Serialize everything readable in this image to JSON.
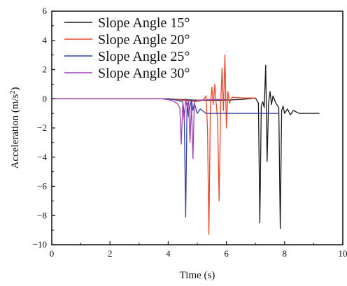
{
  "chart_data": {
    "type": "line",
    "xlabel": "Time (s)",
    "ylabel": "Acceleration (m/s²)",
    "ylabel_base": "Acceleration (m/s",
    "ylabel_sup": "2",
    "ylabel_close": ")",
    "xlim": [
      0,
      10
    ],
    "ylim": [
      -10,
      6
    ],
    "x_ticks": [
      0,
      2,
      4,
      6,
      8,
      10
    ],
    "y_ticks": [
      -10,
      -8,
      -6,
      -4,
      -2,
      0,
      2,
      4,
      6
    ],
    "grid": false,
    "legend_position": "top-center",
    "series": [
      {
        "name": "Slope Angle 15°",
        "color": "#1a1a1a",
        "points": [
          [
            0,
            0
          ],
          [
            1.5,
            0
          ],
          [
            3,
            0
          ],
          [
            4.0,
            0
          ],
          [
            4.4,
            -0.05
          ],
          [
            5.0,
            -0.1
          ],
          [
            5.8,
            -0.1
          ],
          [
            6.5,
            -0.05
          ],
          [
            7.0,
            0.05
          ],
          [
            7.1,
            -0.3
          ],
          [
            7.15,
            -8.5
          ],
          [
            7.2,
            -0.5
          ],
          [
            7.25,
            -0.2
          ],
          [
            7.3,
            -0.6
          ],
          [
            7.35,
            2.3
          ],
          [
            7.4,
            -4.3
          ],
          [
            7.45,
            -0.3
          ],
          [
            7.5,
            0.5
          ],
          [
            7.55,
            -0.4
          ],
          [
            7.6,
            0.2
          ],
          [
            7.7,
            -0.3
          ],
          [
            7.8,
            -0.6
          ],
          [
            7.85,
            -8.9
          ],
          [
            7.9,
            -0.8
          ],
          [
            7.95,
            -0.5
          ],
          [
            8.0,
            -1.0
          ],
          [
            8.1,
            -0.7
          ],
          [
            8.2,
            -1.1
          ],
          [
            8.3,
            -0.8
          ],
          [
            8.5,
            -1.0
          ],
          [
            8.8,
            -1.0
          ],
          [
            9.2,
            -1.0
          ]
        ]
      },
      {
        "name": "Slope Angle 20°",
        "color": "#e8472a",
        "points": [
          [
            0,
            0
          ],
          [
            1.5,
            0
          ],
          [
            3,
            0
          ],
          [
            4.0,
            0
          ],
          [
            4.5,
            -0.1
          ],
          [
            5.0,
            -0.2
          ],
          [
            5.2,
            -0.1
          ],
          [
            5.3,
            0.2
          ],
          [
            5.35,
            -2.0
          ],
          [
            5.4,
            -9.3
          ],
          [
            5.45,
            -0.5
          ],
          [
            5.5,
            0.8
          ],
          [
            5.55,
            -0.4
          ],
          [
            5.6,
            1.0
          ],
          [
            5.65,
            -0.3
          ],
          [
            5.7,
            -1.5
          ],
          [
            5.75,
            -7.0
          ],
          [
            5.8,
            -0.6
          ],
          [
            5.85,
            2.1
          ],
          [
            5.9,
            -0.8
          ],
          [
            5.95,
            3.0
          ],
          [
            6.0,
            -2.0
          ],
          [
            6.05,
            0.5
          ],
          [
            6.1,
            -0.3
          ],
          [
            6.2,
            0.1
          ],
          [
            6.6,
            0.05
          ],
          [
            7.0,
            0.05
          ]
        ]
      },
      {
        "name": "Slope Angle 25°",
        "color": "#3040a0",
        "points": [
          [
            0,
            0
          ],
          [
            1.5,
            0
          ],
          [
            3,
            0
          ],
          [
            4.0,
            0
          ],
          [
            4.3,
            -0.1
          ],
          [
            4.5,
            -0.2
          ],
          [
            4.55,
            -1.0
          ],
          [
            4.6,
            -8.1
          ],
          [
            4.65,
            -0.3
          ],
          [
            4.7,
            -1.2
          ],
          [
            4.75,
            -0.5
          ],
          [
            4.8,
            -0.1
          ],
          [
            4.85,
            -0.8
          ],
          [
            4.9,
            -0.3
          ],
          [
            5.0,
            -1.0
          ],
          [
            5.1,
            -0.7
          ],
          [
            5.3,
            -1.0
          ],
          [
            6.0,
            -1.0
          ],
          [
            7.0,
            -1.0
          ],
          [
            7.8,
            -1.0
          ]
        ]
      },
      {
        "name": "Slope Angle 30°",
        "color": "#a040b0",
        "points": [
          [
            0,
            0
          ],
          [
            1.5,
            0
          ],
          [
            3,
            0
          ],
          [
            3.8,
            0
          ],
          [
            4.1,
            -0.1
          ],
          [
            4.3,
            -0.3
          ],
          [
            4.4,
            -0.6
          ],
          [
            4.45,
            -3.1
          ],
          [
            4.5,
            -0.4
          ],
          [
            4.55,
            -1.5
          ],
          [
            4.6,
            0.0
          ],
          [
            4.65,
            -0.6
          ],
          [
            4.7,
            -0.1
          ],
          [
            4.75,
            -3.0
          ],
          [
            4.8,
            -0.3
          ],
          [
            4.85,
            -4.1
          ],
          [
            4.9,
            -0.2
          ],
          [
            5.0,
            -0.1
          ],
          [
            5.5,
            -0.05
          ],
          [
            6.0,
            -0.05
          ]
        ]
      }
    ]
  }
}
